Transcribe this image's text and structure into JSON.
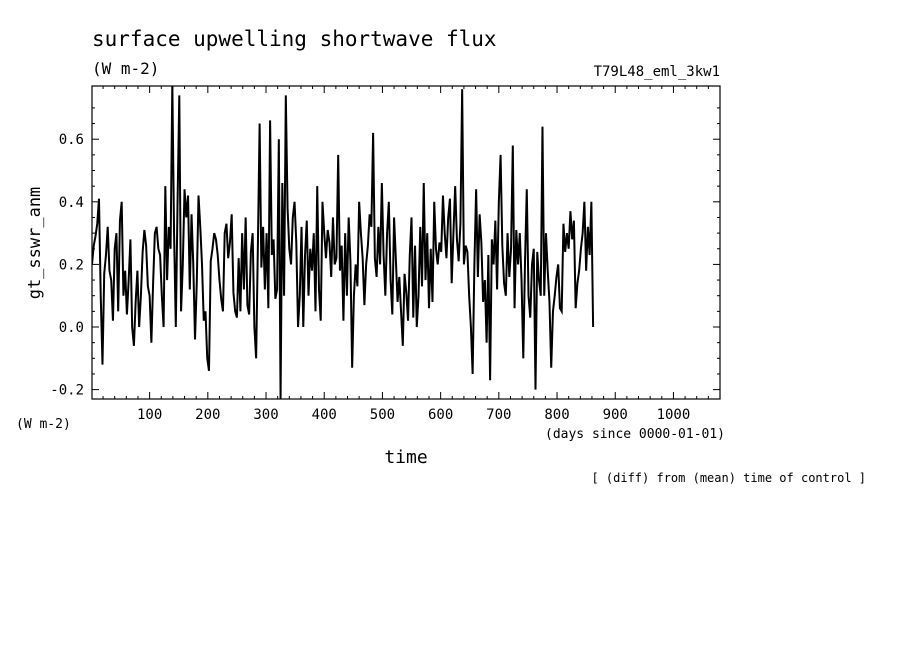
{
  "chart_data": {
    "type": "line",
    "title": "surface upwelling shortwave flux",
    "subtitle": "(W m-2)",
    "run_label": "T79L48_eml_3kw1",
    "ylabel": "gt_sswr_anm",
    "yunit": "(W m-2)",
    "xlabel": "time",
    "xunit": "(days since 0000-01-01)",
    "note": "[ (diff) from (mean) time of control ]",
    "xlim": [
      1,
      1080
    ],
    "ylim": [
      -0.23,
      0.77
    ],
    "xticks": [
      100,
      200,
      300,
      400,
      500,
      600,
      700,
      800,
      900,
      1000
    ],
    "xtick_labels": [
      "100",
      "200",
      "300",
      "400",
      "500",
      "600",
      "700",
      "800",
      "900",
      "1000"
    ],
    "yticks": [
      -0.2,
      0.0,
      0.2,
      0.4,
      0.6
    ],
    "ytick_labels": [
      "-0.2",
      "0.0",
      "0.2",
      "0.4",
      "0.6"
    ],
    "grid": false,
    "series_color": "#000000",
    "series": [
      {
        "x_start": 1,
        "x_step": 3,
        "values": [
          0.2,
          0.26,
          0.29,
          0.33,
          0.41,
          0.1,
          -0.12,
          0.17,
          0.23,
          0.32,
          0.18,
          0.15,
          0.02,
          0.25,
          0.3,
          0.05,
          0.34,
          0.4,
          0.1,
          0.18,
          0.04,
          0.15,
          0.28,
          0.0,
          -0.06,
          0.08,
          0.18,
          0.0,
          0.1,
          0.24,
          0.31,
          0.26,
          0.13,
          0.1,
          -0.05,
          0.14,
          0.3,
          0.32,
          0.25,
          0.23,
          0.1,
          0.0,
          0.45,
          0.15,
          0.32,
          0.25,
          0.78,
          0.3,
          0.0,
          0.4,
          0.74,
          0.05,
          0.2,
          0.44,
          0.35,
          0.42,
          0.12,
          0.36,
          0.2,
          -0.04,
          0.14,
          0.42,
          0.32,
          0.2,
          0.02,
          0.05,
          -0.1,
          -0.14,
          0.21,
          0.25,
          0.3,
          0.28,
          0.23,
          0.15,
          0.09,
          0.05,
          0.3,
          0.33,
          0.22,
          0.27,
          0.36,
          0.11,
          0.05,
          0.03,
          0.22,
          0.05,
          0.3,
          0.12,
          0.35,
          0.07,
          0.04,
          0.24,
          0.3,
          0.0,
          -0.1,
          0.26,
          0.65,
          0.19,
          0.32,
          0.12,
          0.3,
          0.06,
          0.66,
          0.23,
          0.28,
          0.09,
          0.12,
          0.6,
          -0.23,
          0.46,
          0.1,
          0.74,
          0.38,
          0.25,
          0.2,
          0.35,
          0.4,
          0.27,
          0.0,
          0.1,
          0.32,
          0.0,
          0.23,
          0.34,
          0.1,
          0.25,
          0.18,
          0.3,
          0.05,
          0.45,
          0.12,
          0.02,
          0.4,
          0.3,
          0.22,
          0.31,
          0.27,
          0.16,
          0.35,
          0.2,
          0.22,
          0.55,
          0.18,
          0.26,
          0.02,
          0.3,
          0.1,
          0.35,
          0.21,
          -0.13,
          0.1,
          0.2,
          0.13,
          0.4,
          0.3,
          0.22,
          0.07,
          0.2,
          0.26,
          0.36,
          0.32,
          0.62,
          0.22,
          0.16,
          0.32,
          0.2,
          0.46,
          0.23,
          0.1,
          0.3,
          0.4,
          0.15,
          0.04,
          0.35,
          0.22,
          0.08,
          0.16,
          0.05,
          -0.06,
          0.17,
          0.11,
          0.02,
          0.23,
          0.35,
          0.03,
          0.26,
          0.0,
          0.1,
          0.32,
          0.13,
          0.46,
          0.15,
          0.3,
          0.06,
          0.25,
          0.08,
          0.4,
          0.25,
          0.2,
          0.27,
          0.24,
          0.42,
          0.3,
          0.22,
          0.35,
          0.41,
          0.14,
          0.3,
          0.45,
          0.28,
          0.21,
          0.33,
          0.76,
          0.2,
          0.26,
          0.24,
          0.1,
          0.0,
          -0.15,
          0.2,
          0.44,
          0.16,
          0.36,
          0.27,
          0.08,
          0.15,
          -0.05,
          0.23,
          -0.17,
          0.28,
          0.2,
          0.34,
          0.12,
          0.4,
          0.55,
          0.26,
          0.14,
          0.1,
          0.3,
          0.16,
          0.25,
          0.58,
          0.06,
          0.31,
          0.2,
          0.3,
          0.15,
          -0.1,
          0.21,
          0.44,
          0.1,
          0.03,
          0.2,
          0.25,
          -0.2,
          0.24,
          0.15,
          0.1,
          0.64,
          0.1,
          0.3,
          0.18,
          0.08,
          -0.13,
          0.05,
          0.1,
          0.16,
          0.2,
          0.06,
          0.05,
          0.33,
          0.24,
          0.3,
          0.25,
          0.37,
          0.28,
          0.34,
          0.06,
          0.14,
          0.18,
          0.25,
          0.3,
          0.4,
          0.18,
          0.32,
          0.23,
          0.4,
          0.0
        ]
      }
    ]
  }
}
